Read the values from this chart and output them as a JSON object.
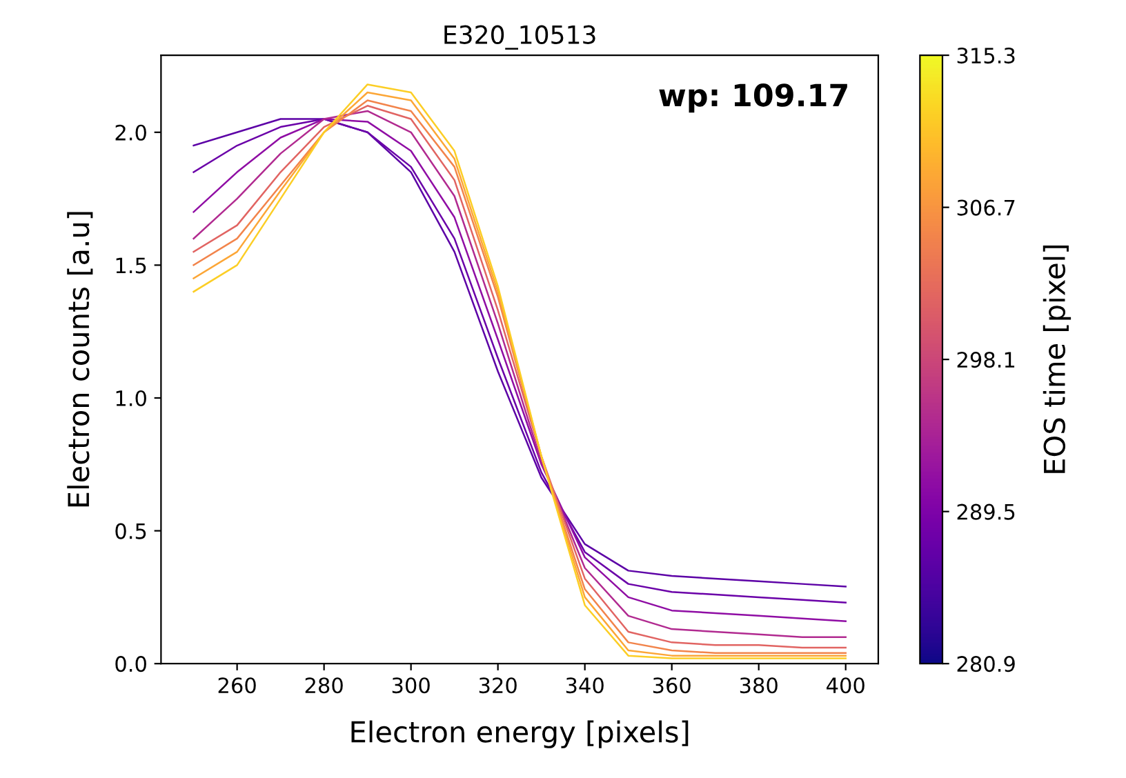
{
  "chart_data": {
    "type": "line",
    "title": "E320_10513",
    "xlabel": "Electron energy [pixels]",
    "ylabel": "Electron counts [a.u]",
    "clabel": "EOS time [pixel]",
    "annotations": [
      "wp: 109.17"
    ],
    "x": [
      250,
      260,
      270,
      280,
      290,
      300,
      310,
      320,
      330,
      340,
      350,
      360,
      370,
      380,
      390,
      400
    ],
    "series": [
      {
        "color": "#5c01a6",
        "values": [
          1.95,
          2.0,
          2.05,
          2.05,
          2.0,
          1.85,
          1.55,
          1.1,
          0.7,
          0.45,
          0.35,
          0.33,
          0.32,
          0.31,
          0.3,
          0.29
        ]
      },
      {
        "color": "#6a00a8",
        "values": [
          1.85,
          1.95,
          2.02,
          2.05,
          2.0,
          1.87,
          1.6,
          1.15,
          0.72,
          0.42,
          0.3,
          0.27,
          0.26,
          0.25,
          0.24,
          0.23
        ]
      },
      {
        "color": "#8f0da4",
        "values": [
          1.7,
          1.85,
          1.98,
          2.05,
          2.04,
          1.93,
          1.68,
          1.22,
          0.75,
          0.4,
          0.25,
          0.2,
          0.19,
          0.18,
          0.17,
          0.16
        ]
      },
      {
        "color": "#b12a90",
        "values": [
          1.6,
          1.75,
          1.92,
          2.05,
          2.08,
          2.0,
          1.76,
          1.28,
          0.76,
          0.36,
          0.18,
          0.13,
          0.12,
          0.11,
          0.1,
          0.1
        ]
      },
      {
        "color": "#e16462",
        "values": [
          1.55,
          1.65,
          1.85,
          2.02,
          2.1,
          2.05,
          1.82,
          1.33,
          0.78,
          0.32,
          0.12,
          0.08,
          0.07,
          0.07,
          0.06,
          0.06
        ]
      },
      {
        "color": "#f2844b",
        "values": [
          1.5,
          1.6,
          1.8,
          2.0,
          2.12,
          2.08,
          1.87,
          1.38,
          0.78,
          0.28,
          0.08,
          0.05,
          0.04,
          0.04,
          0.04,
          0.04
        ]
      },
      {
        "color": "#fca636",
        "values": [
          1.45,
          1.55,
          1.78,
          2.0,
          2.15,
          2.12,
          1.9,
          1.4,
          0.78,
          0.25,
          0.05,
          0.03,
          0.03,
          0.03,
          0.03,
          0.03
        ]
      },
      {
        "color": "#fcce25",
        "values": [
          1.4,
          1.5,
          1.75,
          2.0,
          2.18,
          2.15,
          1.93,
          1.42,
          0.78,
          0.22,
          0.03,
          0.02,
          0.02,
          0.02,
          0.02,
          0.02
        ]
      }
    ],
    "xlim": [
      242.5,
      407.5
    ],
    "xticks": [
      260,
      280,
      300,
      320,
      340,
      360,
      380,
      400
    ],
    "ylim": [
      0,
      2.29
    ],
    "yticks": [
      {
        "value": 0,
        "label": "0.0"
      },
      0.5,
      {
        "value": 1,
        "label": "1.0"
      },
      1.5,
      {
        "value": 2,
        "label": "2.0"
      }
    ],
    "clim": [
      280.9,
      315.3
    ],
    "cticks": [
      280.9,
      289.5,
      298.1,
      306.7,
      315.3
    ],
    "grid": false,
    "marker": "none",
    "line_style": "solid"
  }
}
